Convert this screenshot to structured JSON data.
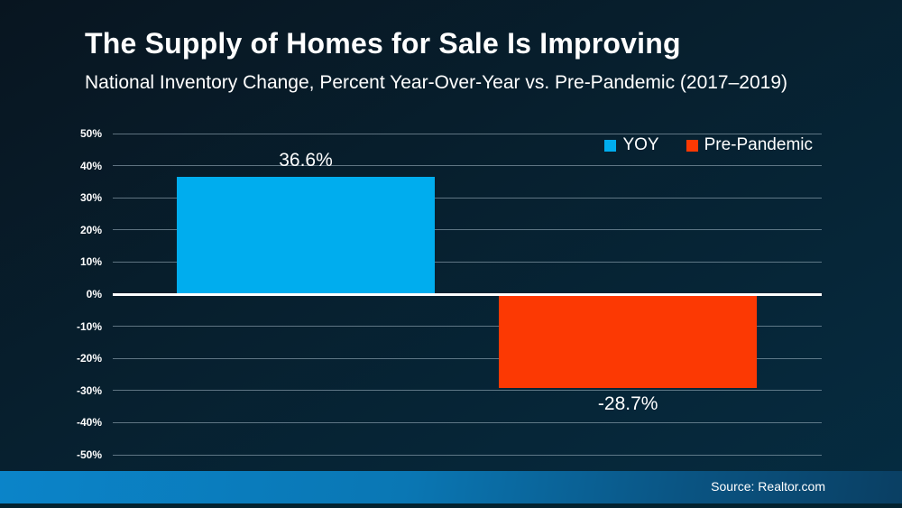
{
  "title": "The Supply of Homes for Sale Is Improving",
  "subtitle": "National Inventory Change, Percent Year-Over-Year vs. Pre-Pandemic (2017–2019)",
  "source": "Source: Realtor.com",
  "colors": {
    "yoy_blue": "#00adee",
    "prepandemic_orange": "#fc3903",
    "background_top": "#081520",
    "background_bottom": "#052c41",
    "footer_left": "#0b84c9",
    "footer_right": "#0a3f63",
    "zero_axis": "#ffffff"
  },
  "legend": [
    {
      "label": "YOY",
      "color": "#00adee"
    },
    {
      "label": "Pre-Pandemic",
      "color": "#fc3903"
    }
  ],
  "chart_data": {
    "type": "bar",
    "title": "The Supply of Homes for Sale Is Improving",
    "subtitle": "National Inventory Change, Percent Year-Over-Year vs. Pre-Pandemic (2017–2019)",
    "categories": [
      "YOY",
      "Pre-Pandemic"
    ],
    "values": [
      36.6,
      -28.7
    ],
    "value_labels": [
      "36.6%",
      "-28.7%"
    ],
    "series_colors": [
      "#00adee",
      "#fc3903"
    ],
    "xlabel": "",
    "ylabel": "",
    "ylim": [
      -50,
      50
    ],
    "ytick_step": 10,
    "ytick_labels_top_to_bottom": [
      "50%",
      "40%",
      "30%",
      "20%",
      "10%",
      "0%",
      "-10%",
      "-20%",
      "-30%",
      "-40%",
      "-50%"
    ],
    "grid": true,
    "zero_line_emphasized": true,
    "legend_position": "top-right",
    "legend_entries": [
      "YOY",
      "Pre-Pandemic"
    ]
  }
}
